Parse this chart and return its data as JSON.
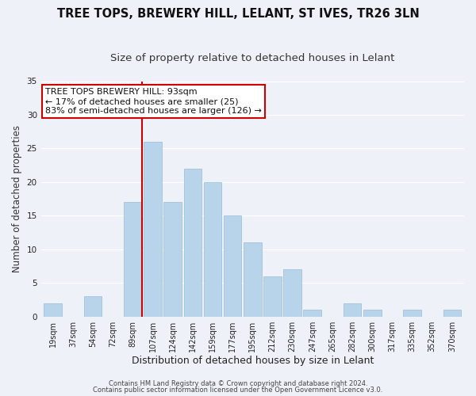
{
  "title": "TREE TOPS, BREWERY HILL, LELANT, ST IVES, TR26 3LN",
  "subtitle": "Size of property relative to detached houses in Lelant",
  "xlabel": "Distribution of detached houses by size in Lelant",
  "ylabel": "Number of detached properties",
  "bins": [
    "19sqm",
    "37sqm",
    "54sqm",
    "72sqm",
    "89sqm",
    "107sqm",
    "124sqm",
    "142sqm",
    "159sqm",
    "177sqm",
    "195sqm",
    "212sqm",
    "230sqm",
    "247sqm",
    "265sqm",
    "282sqm",
    "300sqm",
    "317sqm",
    "335sqm",
    "352sqm",
    "370sqm"
  ],
  "values": [
    2,
    0,
    3,
    0,
    17,
    26,
    17,
    22,
    20,
    15,
    11,
    6,
    7,
    1,
    0,
    2,
    1,
    0,
    1,
    0,
    1
  ],
  "bar_color": "#b8d4ea",
  "bar_edge_color": "#9bbcd8",
  "highlight_bin_index": 4,
  "highlight_color": "#cc0000",
  "annotation_title": "TREE TOPS BREWERY HILL: 93sqm",
  "annotation_line1": "← 17% of detached houses are smaller (25)",
  "annotation_line2": "83% of semi-detached houses are larger (126) →",
  "annotation_box_facecolor": "#ffffff",
  "annotation_box_edgecolor": "#cc0000",
  "ylim": [
    0,
    35
  ],
  "yticks": [
    0,
    5,
    10,
    15,
    20,
    25,
    30,
    35
  ],
  "footnote1": "Contains HM Land Registry data © Crown copyright and database right 2024.",
  "footnote2": "Contains public sector information licensed under the Open Government Licence v3.0.",
  "background_color": "#eef2f8",
  "plot_background": "#eef2f8",
  "grid_color": "#ffffff",
  "title_fontsize": 10.5,
  "subtitle_fontsize": 9.5,
  "tick_fontsize": 7,
  "ylabel_fontsize": 8.5,
  "xlabel_fontsize": 9,
  "annotation_fontsize": 8,
  "footnote_fontsize": 6
}
